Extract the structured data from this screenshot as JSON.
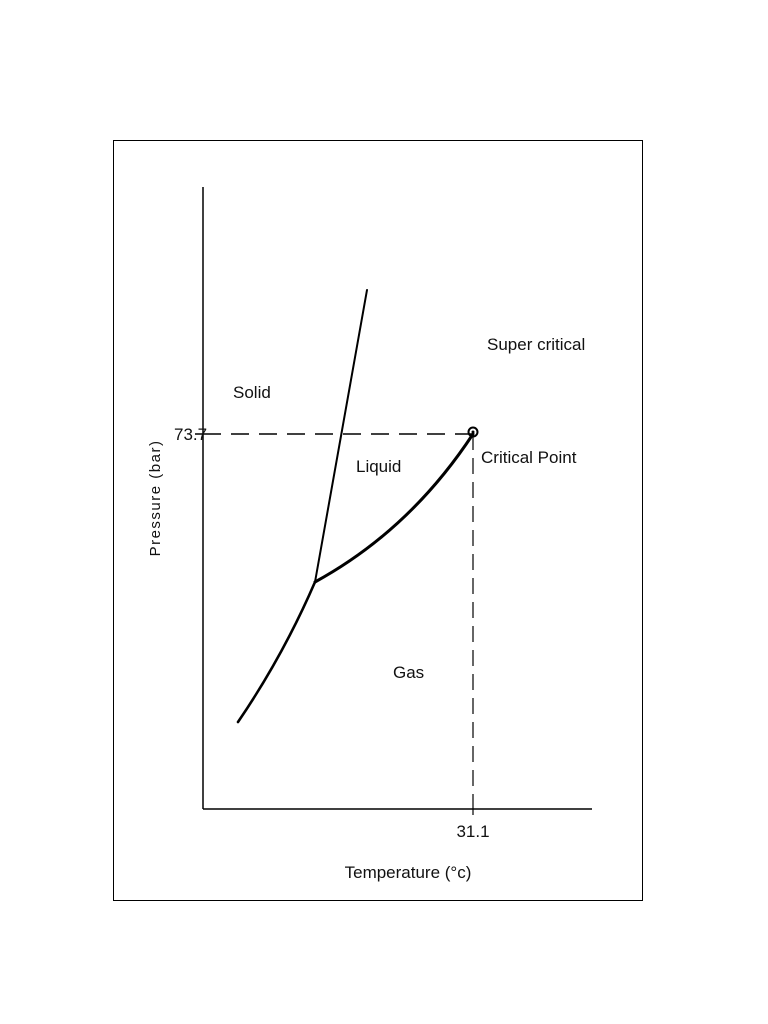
{
  "diagram": {
    "axes": {
      "x_label": "Temperature (°c)",
      "y_label": "Pressure (bar)"
    },
    "ticks": {
      "critical_temperature": "31.1",
      "critical_pressure": "73.7"
    },
    "regions": {
      "solid": "Solid",
      "liquid": "Liquid",
      "gas": "Gas",
      "supercritical": "Super critical"
    },
    "points": {
      "critical_point": "Critical Point"
    }
  }
}
